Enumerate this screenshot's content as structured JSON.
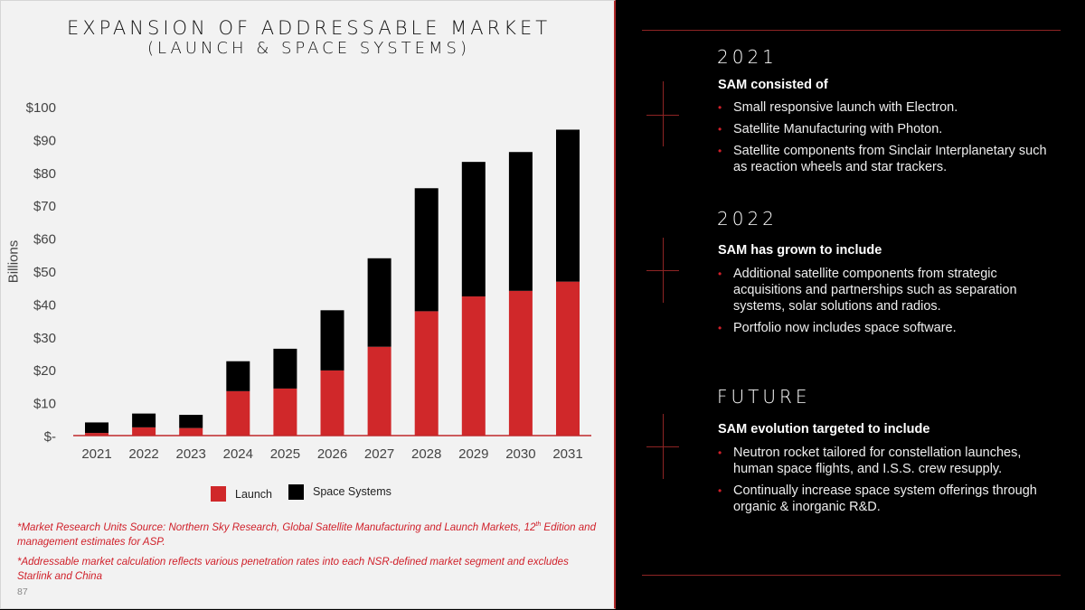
{
  "left_panel": {
    "title_line1": "EXPANSION OF ADDRESSABLE MARKET",
    "title_line2": "(LAUNCH & SPACE SYSTEMS)",
    "footnote1_pre": "*Market Research Units Source: Northern Sky Research, Global Satellite Manufacturing and Launch Markets, 12",
    "footnote1_sup": "th",
    "footnote1_post": " Edition and management estimates for ASP.",
    "footnote2": "*Addressable market calculation reflects various penetration rates into each NSR-defined market segment and excludes Starlink and China",
    "page_number": "87"
  },
  "chart_data": {
    "type": "bar",
    "stacked": true,
    "title": "EXPANSION OF ADDRESSABLE MARKET (LAUNCH & SPACE SYSTEMS)",
    "xlabel": "",
    "ylabel": "Billions",
    "categories": [
      "2021",
      "2022",
      "2023",
      "2024",
      "2025",
      "2026",
      "2027",
      "2028",
      "2029",
      "2030",
      "2031"
    ],
    "series": [
      {
        "name": "Launch",
        "color": "#d0282a",
        "values": [
          0.8,
          2.5,
          2.3,
          13.5,
          14.3,
          19.8,
          27.0,
          37.8,
          42.3,
          44.0,
          46.8
        ]
      },
      {
        "name": "Space Systems",
        "color": "#000000",
        "values": [
          3.2,
          4.2,
          4.0,
          9.1,
          12.1,
          18.3,
          26.9,
          37.4,
          40.9,
          42.2,
          46.2
        ]
      }
    ],
    "ylim": [
      0,
      100
    ],
    "yticks": [
      0,
      10,
      20,
      30,
      40,
      50,
      60,
      70,
      80,
      90,
      100
    ],
    "ytick_labels": [
      "$-",
      "$10",
      "$20",
      "$30",
      "$40",
      "$50",
      "$60",
      "$70",
      "$80",
      "$90",
      "$100"
    ],
    "grid": false,
    "legend_position": "bottom-center",
    "legend": [
      "Launch",
      "Space Systems"
    ]
  },
  "right_panel": {
    "sections": [
      {
        "title": "2021",
        "subtitle": "SAM consisted of",
        "bullets": [
          "Small responsive launch with Electron.",
          "Satellite Manufacturing with Photon.",
          "Satellite components from Sinclair Interplanetary such as reaction wheels and star trackers."
        ]
      },
      {
        "title": "2022",
        "subtitle": "SAM has grown to include",
        "bullets": [
          "Additional satellite components from strategic acquisitions and partnerships such as separation systems, solar solutions and radios.",
          "Portfolio now includes space software."
        ]
      },
      {
        "title": "FUTURE",
        "subtitle": "SAM evolution targeted to include",
        "bullets": [
          "Neutron rocket tailored for constellation launches, human space flights, and I.S.S. crew resupply.",
          "Continually increase space system offerings through organic & inorganic R&D."
        ]
      }
    ],
    "bullet_glyph": "•",
    "accent_color": "#d0202a"
  }
}
